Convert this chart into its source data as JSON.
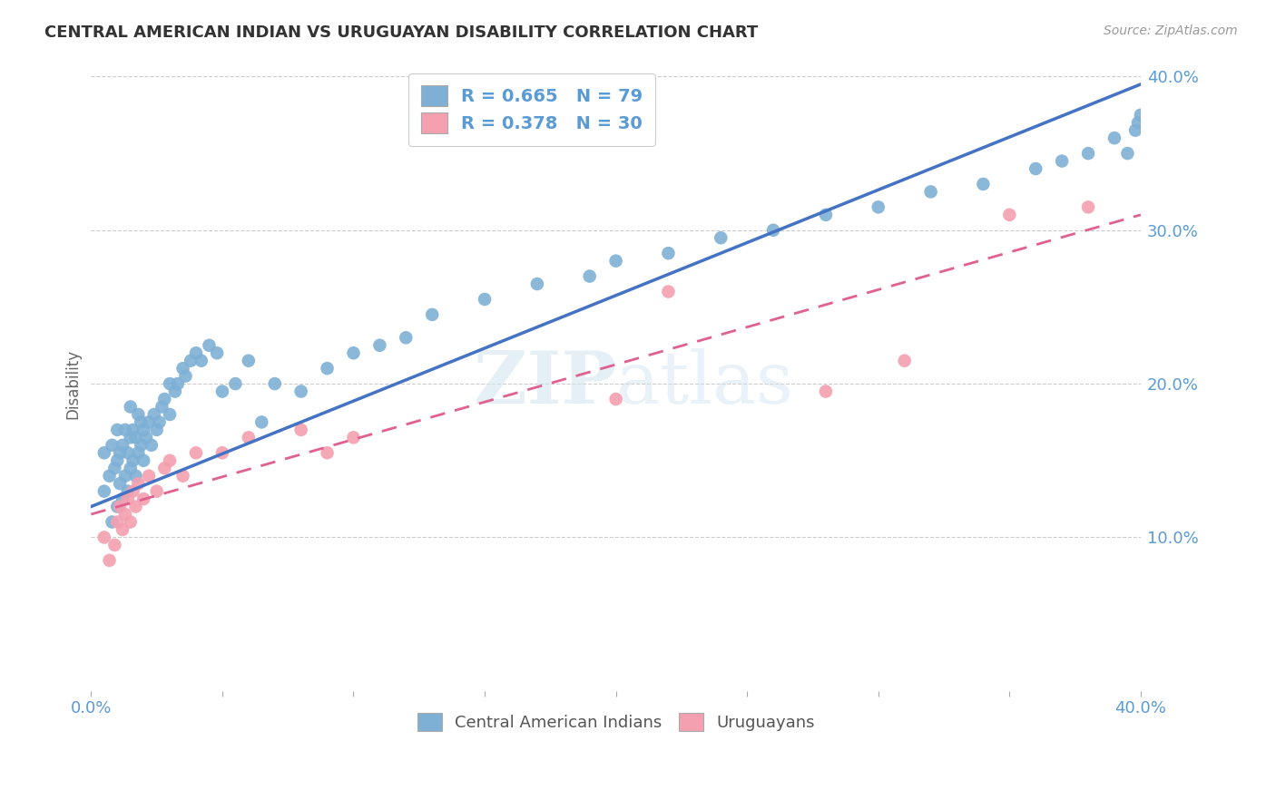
{
  "title": "CENTRAL AMERICAN INDIAN VS URUGUAYAN DISABILITY CORRELATION CHART",
  "source_text": "Source: ZipAtlas.com",
  "ylabel": "Disability",
  "xlim": [
    0.0,
    0.4
  ],
  "ylim": [
    0.0,
    0.4
  ],
  "grid_color": "#cccccc",
  "background_color": "#ffffff",
  "blue_color": "#7EB0D5",
  "pink_color": "#F4A0B0",
  "blue_line_color": "#4472C4",
  "pink_line_color": "#E06090",
  "legend_R1": "R = 0.665",
  "legend_N1": "N = 79",
  "legend_R2": "R = 0.378",
  "legend_N2": "N = 30",
  "watermark": "ZIPatlas",
  "blue_scatter_x": [
    0.005,
    0.005,
    0.007,
    0.008,
    0.008,
    0.009,
    0.01,
    0.01,
    0.01,
    0.011,
    0.011,
    0.012,
    0.012,
    0.013,
    0.013,
    0.014,
    0.014,
    0.015,
    0.015,
    0.015,
    0.016,
    0.016,
    0.017,
    0.017,
    0.018,
    0.018,
    0.019,
    0.019,
    0.02,
    0.02,
    0.021,
    0.022,
    0.023,
    0.024,
    0.025,
    0.026,
    0.027,
    0.028,
    0.03,
    0.03,
    0.032,
    0.033,
    0.035,
    0.036,
    0.038,
    0.04,
    0.042,
    0.045,
    0.048,
    0.05,
    0.055,
    0.06,
    0.065,
    0.07,
    0.08,
    0.09,
    0.1,
    0.11,
    0.12,
    0.13,
    0.15,
    0.17,
    0.19,
    0.2,
    0.22,
    0.24,
    0.26,
    0.28,
    0.3,
    0.32,
    0.34,
    0.36,
    0.37,
    0.38,
    0.39,
    0.395,
    0.398,
    0.399,
    0.4
  ],
  "blue_scatter_y": [
    0.13,
    0.155,
    0.14,
    0.11,
    0.16,
    0.145,
    0.12,
    0.15,
    0.17,
    0.135,
    0.155,
    0.125,
    0.16,
    0.14,
    0.17,
    0.13,
    0.155,
    0.145,
    0.165,
    0.185,
    0.15,
    0.17,
    0.14,
    0.165,
    0.155,
    0.18,
    0.16,
    0.175,
    0.15,
    0.17,
    0.165,
    0.175,
    0.16,
    0.18,
    0.17,
    0.175,
    0.185,
    0.19,
    0.18,
    0.2,
    0.195,
    0.2,
    0.21,
    0.205,
    0.215,
    0.22,
    0.215,
    0.225,
    0.22,
    0.195,
    0.2,
    0.215,
    0.175,
    0.2,
    0.195,
    0.21,
    0.22,
    0.225,
    0.23,
    0.245,
    0.255,
    0.265,
    0.27,
    0.28,
    0.285,
    0.295,
    0.3,
    0.31,
    0.315,
    0.325,
    0.33,
    0.34,
    0.345,
    0.35,
    0.36,
    0.35,
    0.365,
    0.37,
    0.375
  ],
  "pink_scatter_x": [
    0.005,
    0.007,
    0.009,
    0.01,
    0.011,
    0.012,
    0.013,
    0.014,
    0.015,
    0.016,
    0.017,
    0.018,
    0.02,
    0.022,
    0.025,
    0.028,
    0.03,
    0.035,
    0.04,
    0.05,
    0.06,
    0.08,
    0.09,
    0.1,
    0.2,
    0.22,
    0.28,
    0.31,
    0.35,
    0.38
  ],
  "pink_scatter_y": [
    0.1,
    0.085,
    0.095,
    0.11,
    0.12,
    0.105,
    0.115,
    0.125,
    0.11,
    0.13,
    0.12,
    0.135,
    0.125,
    0.14,
    0.13,
    0.145,
    0.15,
    0.14,
    0.155,
    0.155,
    0.165,
    0.17,
    0.155,
    0.165,
    0.19,
    0.26,
    0.195,
    0.215,
    0.31,
    0.315
  ],
  "blue_line_x": [
    0.0,
    0.4
  ],
  "blue_line_y": [
    0.12,
    0.395
  ],
  "pink_line_x": [
    0.0,
    0.4
  ],
  "pink_line_y": [
    0.115,
    0.31
  ]
}
